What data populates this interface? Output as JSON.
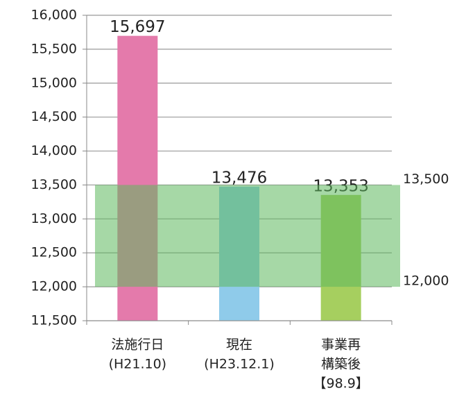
{
  "chart_data": {
    "type": "bar",
    "categories": [
      [
        "法施行日",
        "(H21.10)"
      ],
      [
        "現在",
        "(H23.12.1)"
      ],
      [
        "事業再",
        "構築後",
        "【98.9】"
      ]
    ],
    "values": [
      15697,
      13476,
      13353
    ],
    "value_labels": [
      "15,697",
      "13,476",
      "13,353"
    ],
    "colors": [
      "#e47aab",
      "#8fcbea",
      "#a6cf5f"
    ],
    "ylim": [
      11500,
      16000
    ],
    "yticks": [
      {
        "value": 11500,
        "label": "11,500"
      },
      {
        "value": 12000,
        "label": "12,000"
      },
      {
        "value": 12500,
        "label": "12,500"
      },
      {
        "value": 13000,
        "label": "13,000"
      },
      {
        "value": 13500,
        "label": "13,500"
      },
      {
        "value": 14000,
        "label": "14,000"
      },
      {
        "value": 14500,
        "label": "14,500"
      },
      {
        "value": 15000,
        "label": "15,000"
      },
      {
        "value": 15500,
        "label": "15,500"
      },
      {
        "value": 16000,
        "label": "16,000"
      }
    ],
    "grid": true,
    "band": {
      "range": [
        {
          "value": 12000,
          "label": "12,000"
        },
        {
          "value": 13500,
          "label": "13,500"
        }
      ],
      "color": "#5cb85c"
    }
  }
}
